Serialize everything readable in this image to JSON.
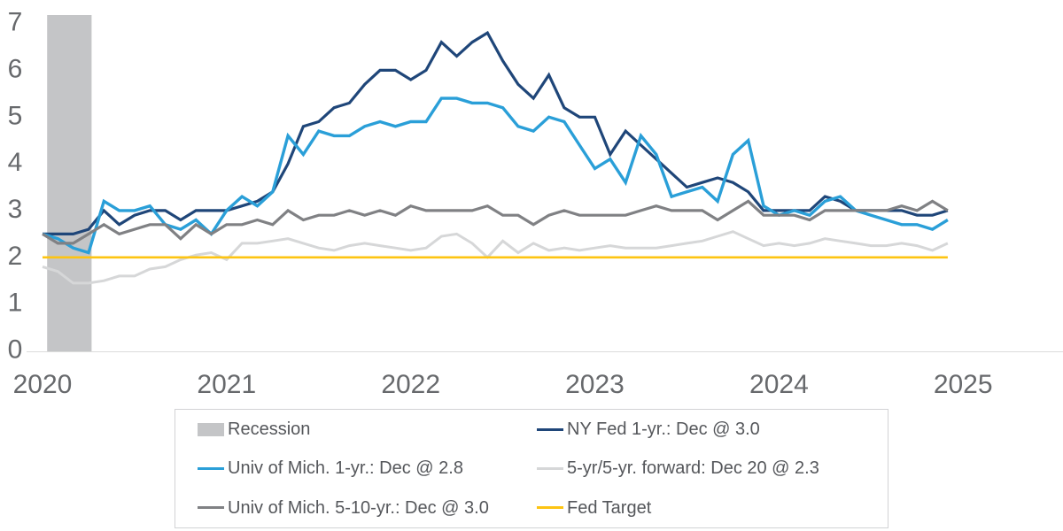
{
  "chart_data": {
    "type": "line",
    "frequency": "monthly",
    "x_start": "2020-01",
    "x_end": "2024-12",
    "n_points": 60,
    "grid": "off",
    "x_axis": {
      "ticks": [
        "2020",
        "2021",
        "2022",
        "2023",
        "2024",
        "2025"
      ]
    },
    "y_axis": {
      "ticks": [
        0,
        1,
        2,
        3,
        4,
        5,
        6,
        7
      ],
      "min": 0,
      "max": 7
    },
    "recession": {
      "label": "Recession",
      "color": "#c4c5c7",
      "span_months": [
        0.3,
        3.2
      ]
    },
    "series": [
      {
        "id": "ny-fed-1yr",
        "name": "NY Fed 1-yr.",
        "color": "#1f4679",
        "stroke_width": 3.2,
        "values": [
          2.5,
          2.5,
          2.5,
          2.6,
          3.0,
          2.7,
          2.9,
          3.0,
          3.0,
          2.8,
          3.0,
          3.0,
          3.0,
          3.1,
          3.2,
          3.4,
          4.0,
          4.8,
          4.9,
          5.2,
          5.3,
          5.7,
          6.0,
          6.0,
          5.8,
          6.0,
          6.6,
          6.3,
          6.6,
          6.8,
          6.2,
          5.7,
          5.4,
          5.9,
          5.2,
          5.0,
          5.0,
          4.2,
          4.7,
          4.4,
          4.1,
          3.8,
          3.5,
          3.6,
          3.7,
          3.6,
          3.4,
          3.0,
          3.0,
          3.0,
          3.0,
          3.3,
          3.2,
          3.0,
          3.0,
          3.0,
          3.0,
          2.9,
          2.9,
          3.0
        ]
      },
      {
        "id": "umich-1yr",
        "name": "Univ of Mich. 1-yr.",
        "color": "#2a9fd8",
        "stroke_width": 3.4,
        "values": [
          2.5,
          2.4,
          2.2,
          2.1,
          3.2,
          3.0,
          3.0,
          3.1,
          2.7,
          2.6,
          2.8,
          2.5,
          3.0,
          3.3,
          3.1,
          3.4,
          4.6,
          4.2,
          4.7,
          4.6,
          4.6,
          4.8,
          4.9,
          4.8,
          4.9,
          4.9,
          5.4,
          5.4,
          5.3,
          5.3,
          5.2,
          4.8,
          4.7,
          5.0,
          4.9,
          4.4,
          3.9,
          4.1,
          3.6,
          4.6,
          4.2,
          3.3,
          3.4,
          3.5,
          3.2,
          4.2,
          4.5,
          3.1,
          2.9,
          3.0,
          2.9,
          3.2,
          3.3,
          3.0,
          2.9,
          2.8,
          2.7,
          2.7,
          2.6,
          2.8
        ]
      },
      {
        "id": "forward-5yr5yr",
        "name": "5-yr/5-yr. forward",
        "color": "#d6d7d8",
        "stroke_width": 3.0,
        "values": [
          1.8,
          1.7,
          1.45,
          1.45,
          1.5,
          1.6,
          1.6,
          1.75,
          1.8,
          1.95,
          2.05,
          2.1,
          1.95,
          2.3,
          2.3,
          2.35,
          2.4,
          2.3,
          2.2,
          2.15,
          2.25,
          2.3,
          2.25,
          2.2,
          2.15,
          2.2,
          2.45,
          2.5,
          2.3,
          2.0,
          2.35,
          2.1,
          2.3,
          2.15,
          2.2,
          2.15,
          2.2,
          2.25,
          2.2,
          2.2,
          2.2,
          2.25,
          2.3,
          2.35,
          2.45,
          2.55,
          2.4,
          2.25,
          2.3,
          2.25,
          2.3,
          2.4,
          2.35,
          2.3,
          2.25,
          2.25,
          2.3,
          2.25,
          2.15,
          2.3
        ]
      },
      {
        "id": "umich-5-10yr",
        "name": "Univ of Mich. 5-10-yr.",
        "color": "#808184",
        "stroke_width": 3.2,
        "values": [
          2.5,
          2.3,
          2.3,
          2.5,
          2.7,
          2.5,
          2.6,
          2.7,
          2.7,
          2.4,
          2.7,
          2.5,
          2.7,
          2.7,
          2.8,
          2.7,
          3.0,
          2.8,
          2.9,
          2.9,
          3.0,
          2.9,
          3.0,
          2.9,
          3.1,
          3.0,
          3.0,
          3.0,
          3.0,
          3.1,
          2.9,
          2.9,
          2.7,
          2.9,
          3.0,
          2.9,
          2.9,
          2.9,
          2.9,
          3.0,
          3.1,
          3.0,
          3.0,
          3.0,
          2.8,
          3.0,
          3.2,
          2.9,
          2.9,
          2.9,
          2.8,
          3.0,
          3.0,
          3.0,
          3.0,
          3.0,
          3.1,
          3.0,
          3.2,
          3.0
        ]
      },
      {
        "id": "fed-target",
        "name": "Fed Target",
        "color": "#fdc412",
        "stroke_width": 2.6,
        "constant": 2.0
      }
    ],
    "legend": {
      "items": [
        {
          "id": "recession",
          "label": "Recession",
          "swatch": "patch",
          "color": "#c4c5c7"
        },
        {
          "id": "ny-fed-1yr",
          "label": "NY Fed 1-yr.: Dec @ 3.0",
          "swatch": "line",
          "color": "#1f4679"
        },
        {
          "id": "umich-1yr",
          "label": "Univ of Mich. 1-yr.: Dec @ 2.8",
          "swatch": "line",
          "color": "#2a9fd8"
        },
        {
          "id": "forward-5yr5yr",
          "label": "5-yr/5-yr. forward: Dec 20 @ 2.3",
          "swatch": "line",
          "color": "#d6d7d8"
        },
        {
          "id": "umich-5-10yr",
          "label": "Univ of Mich. 5-10-yr.: Dec @ 3.0",
          "swatch": "line",
          "color": "#808184"
        },
        {
          "id": "fed-target",
          "label": "Fed Target",
          "swatch": "line",
          "color": "#fdc412"
        }
      ]
    }
  }
}
